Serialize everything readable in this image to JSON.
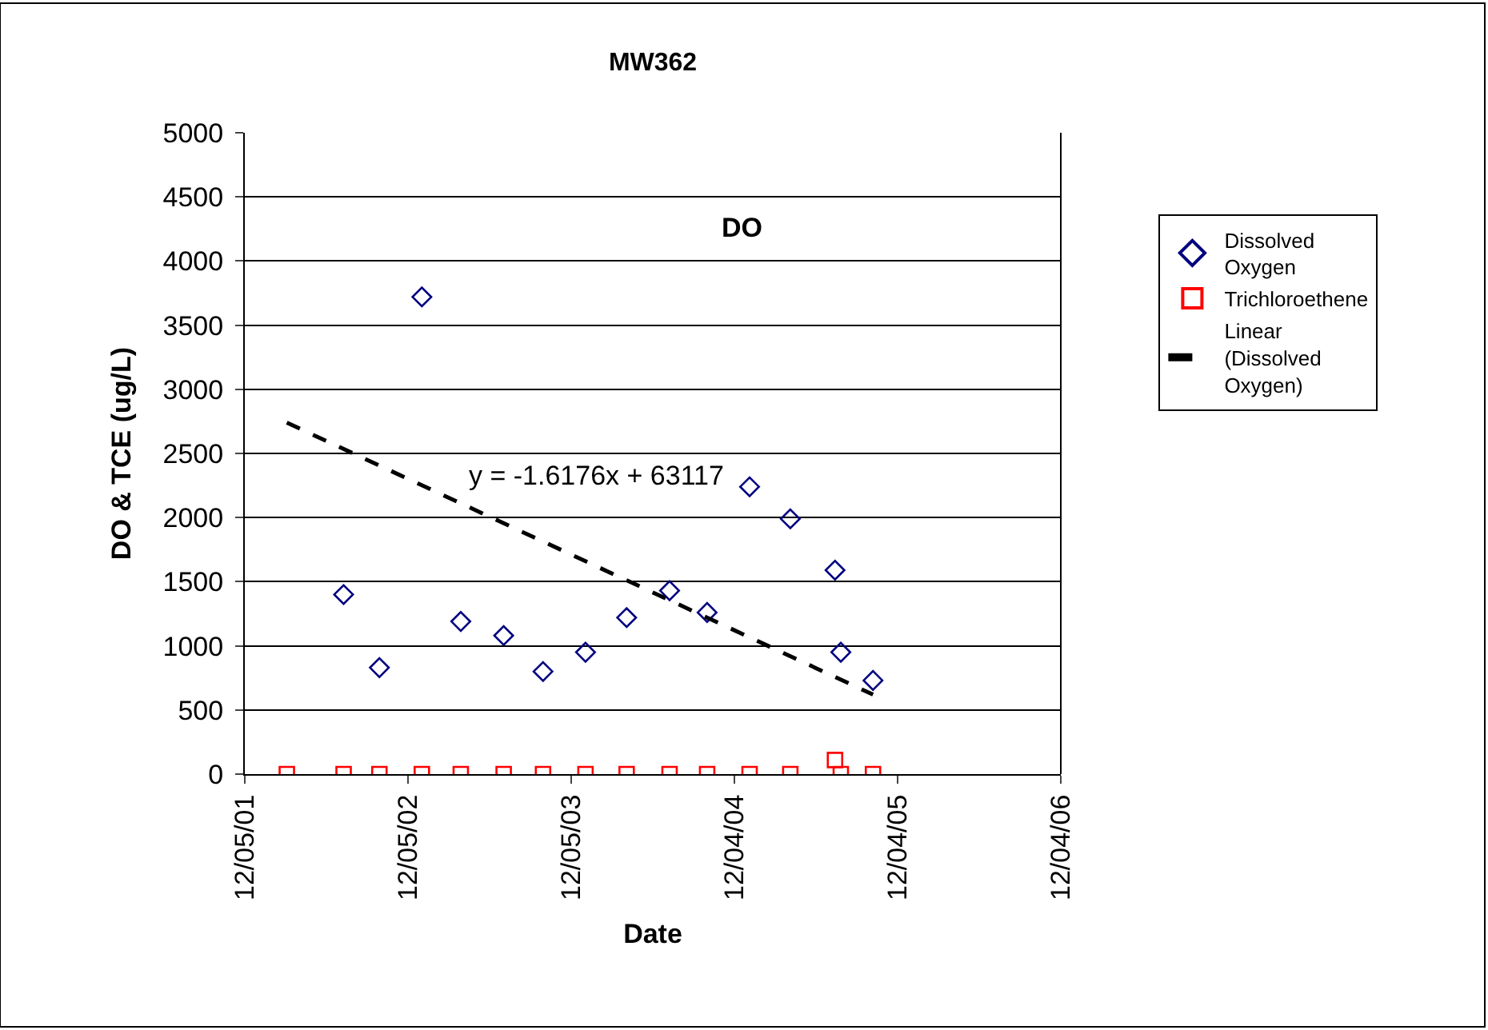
{
  "chart_data": {
    "type": "scatter",
    "title": "MW362",
    "xlabel": "Date",
    "ylabel": "DO & TCE (ug/L)",
    "xlim": [
      "2001-12-05",
      "2006-12-04"
    ],
    "xticks": [
      {
        "value": "2001-12-05",
        "label": "12/05/01"
      },
      {
        "value": "2002-12-05",
        "label": "12/05/02"
      },
      {
        "value": "2003-12-05",
        "label": "12/05/03"
      },
      {
        "value": "2004-12-04",
        "label": "12/04/04"
      },
      {
        "value": "2005-12-04",
        "label": "12/04/05"
      },
      {
        "value": "2006-12-04",
        "label": "12/04/06"
      }
    ],
    "ylim": [
      0,
      5000
    ],
    "yticks": [
      0,
      500,
      1000,
      1500,
      2000,
      2500,
      3000,
      3500,
      4000,
      4500,
      5000
    ],
    "grid": "y",
    "legend": "right",
    "series": [
      {
        "name": "Dissolved Oxygen",
        "marker": "diamond",
        "color": "#000080",
        "x": [
          "2002-07-14",
          "2002-10-02",
          "2003-01-05",
          "2003-04-02",
          "2003-07-07",
          "2003-10-03",
          "2004-01-06",
          "2004-04-07",
          "2004-07-12",
          "2004-10-04",
          "2005-01-07",
          "2005-04-08",
          "2005-07-17",
          "2005-07-30",
          "2005-10-10"
        ],
        "values": [
          1400,
          830,
          3720,
          1190,
          1080,
          800,
          950,
          1220,
          1430,
          1260,
          2240,
          1990,
          1590,
          950,
          730
        ]
      },
      {
        "name": "Trichloroethene",
        "marker": "square",
        "color": "#ff0000",
        "x": [
          "2002-03-09",
          "2002-07-14",
          "2002-10-02",
          "2003-01-05",
          "2003-04-02",
          "2003-07-07",
          "2003-10-03",
          "2004-01-06",
          "2004-04-07",
          "2004-07-12",
          "2004-10-04",
          "2005-01-07",
          "2005-04-08",
          "2005-07-17",
          "2005-07-30",
          "2005-10-10"
        ],
        "values": [
          0,
          0,
          0,
          0,
          0,
          0,
          0,
          0,
          0,
          0,
          0,
          0,
          0,
          110,
          0,
          0
        ]
      },
      {
        "name": "Linear (Dissolved Oxygen)",
        "type": "line",
        "line_style": "dashed",
        "color": "#000000",
        "x": [
          "2002-03-09",
          "2005-10-10"
        ],
        "values": [
          2740,
          620
        ]
      }
    ],
    "annotations": [
      "DO",
      "y = -1.6176x + 63117"
    ]
  }
}
